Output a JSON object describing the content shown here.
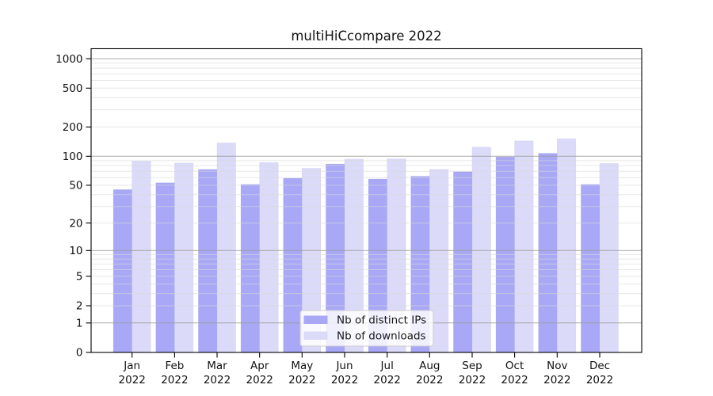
{
  "title": "multiHiCcompare 2022",
  "chart_data": {
    "type": "bar",
    "scale": "log1p (log-style y axis with 0 baseline)",
    "months": [
      "Jan",
      "Feb",
      "Mar",
      "Apr",
      "May",
      "Jun",
      "Jul",
      "Aug",
      "Sep",
      "Oct",
      "Nov",
      "Dec"
    ],
    "year": "2022",
    "series": [
      {
        "name": "Nb of distinct IPs",
        "color": "#a8a8f6",
        "edge_color": "#8f8fe2",
        "values": [
          45,
          53,
          73,
          51,
          59,
          83,
          58,
          62,
          69,
          98,
          107,
          51
        ]
      },
      {
        "name": "Nb of downloads",
        "color": "#dbdbf9",
        "edge_color": "#c3c3ef",
        "values": [
          89,
          85,
          137,
          86,
          75,
          93,
          94,
          73,
          124,
          144,
          151,
          84
        ]
      }
    ],
    "y_ticks": [
      0,
      1,
      2,
      5,
      10,
      20,
      50,
      100,
      200,
      500,
      1000
    ],
    "grid": true,
    "legend_position": "inside-bottom-center",
    "background": "#ffffff",
    "frame_color": "#000000"
  }
}
